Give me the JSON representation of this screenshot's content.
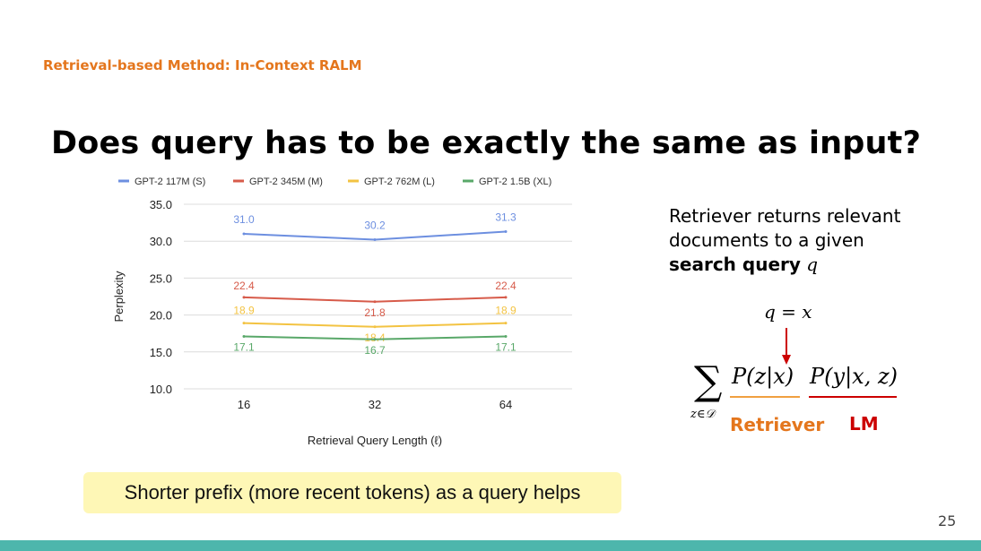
{
  "slide": {
    "section_title": "Retrieval-based Method: In-Context RALM",
    "title": "Does query has to be exactly the same as input?",
    "side_text_1": "Retriever returns relevant documents to a given",
    "side_text_bold": "search query",
    "side_text_var": "q",
    "query_eq": "q = x",
    "label_retriever": "Retriever",
    "label_lm": "LM",
    "callout": "Shorter prefix (more recent tokens) as a query helps",
    "page_number": "25"
  },
  "formula": {
    "sum": "∑",
    "sub": "z∈𝒟",
    "retriever_part": "P(z|x)",
    "lm_part": "P(y|x, z)"
  },
  "colors": {
    "accent_orange": "#e4761d",
    "lm_red": "#cc0000",
    "bottom_bar": "#4db6ac",
    "callout_bg": "#fef7b6"
  },
  "chart_data": {
    "type": "line",
    "categories": [
      "16",
      "32",
      "64"
    ],
    "xlabel": "Retrieval Query Length (ℓ)",
    "ylabel": "Perplexity",
    "ylim": [
      10.0,
      35.0
    ],
    "yticks": [
      "10.0",
      "15.0",
      "20.0",
      "25.0",
      "30.0",
      "35.0"
    ],
    "grid": true,
    "legend": "top",
    "series": [
      {
        "name": "GPT-2 117M (S)",
        "color": "#6d8fe0",
        "values": [
          31.0,
          30.2,
          31.3
        ],
        "labels": [
          "31.0",
          "30.2",
          "31.3"
        ]
      },
      {
        "name": "GPT-2 345M (M)",
        "color": "#d75b4a",
        "values": [
          22.4,
          21.8,
          22.4
        ],
        "labels": [
          "22.4",
          "21.8",
          "22.4"
        ]
      },
      {
        "name": "GPT-2 762M (L)",
        "color": "#f3c342",
        "values": [
          18.9,
          18.4,
          18.9
        ],
        "labels": [
          "18.9",
          "18.4",
          "18.9"
        ]
      },
      {
        "name": "GPT-2 1.5B (XL)",
        "color": "#59a869",
        "values": [
          17.1,
          16.7,
          17.1
        ],
        "labels": [
          "17.1",
          "16.7",
          "17.1"
        ]
      }
    ]
  }
}
